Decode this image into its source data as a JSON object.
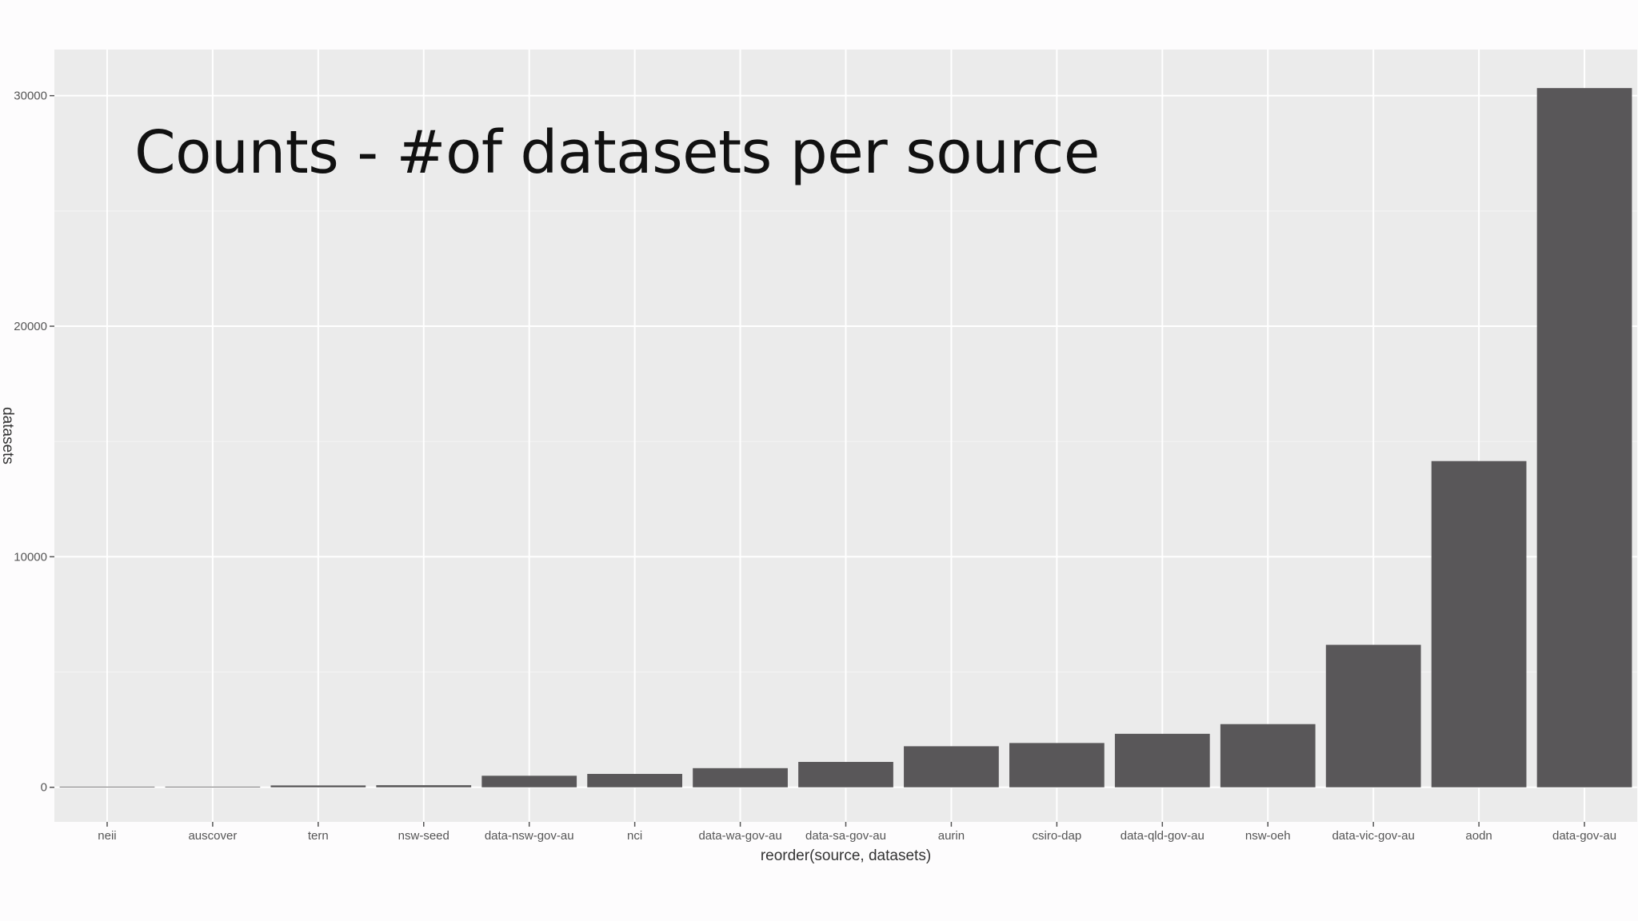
{
  "slide": {
    "title": "Counts - #of datasets per source"
  },
  "chart_data": {
    "type": "bar",
    "categories": [
      "neii",
      "auscover",
      "tern",
      "nsw-seed",
      "data-nsw-gov-au",
      "nci",
      "data-wa-gov-au",
      "data-sa-gov-au",
      "aurin",
      "csiro-dap",
      "data-qld-gov-au",
      "nsw-oeh",
      "data-vic-gov-au",
      "aodn",
      "data-gov-au"
    ],
    "values": [
      5,
      10,
      80,
      90,
      500,
      580,
      830,
      1100,
      1780,
      1920,
      2320,
      2740,
      6180,
      14150,
      30330
    ],
    "xlabel": "reorder(source, datasets)",
    "ylabel": "datasets",
    "ylim": [
      -1500,
      32000
    ],
    "yticks": [
      0,
      10000,
      20000,
      30000
    ],
    "grid": true,
    "legend": "none",
    "colors": {
      "bar": "#595759",
      "panel": "#ebebeb",
      "grid_major": "#ffffff",
      "grid_minor": "#f3f3f3"
    }
  }
}
